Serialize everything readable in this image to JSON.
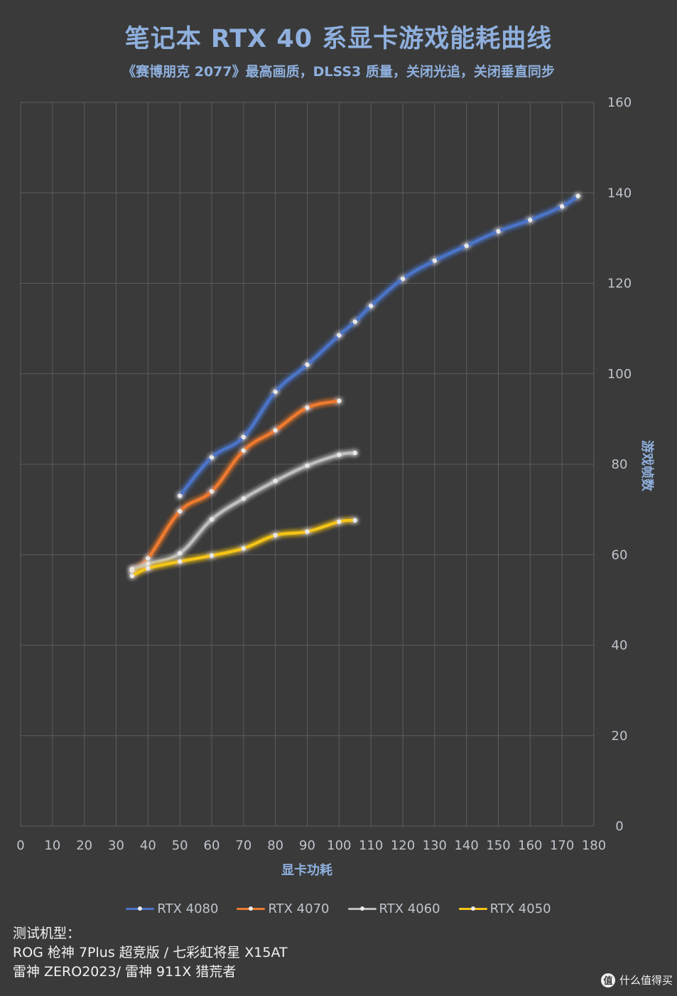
{
  "chart_data": {
    "type": "line",
    "title": "笔记本 RTX 40 系显卡游戏能耗曲线",
    "subtitle": "《赛博朋克 2077》最高画质，DLSS3 质量，关闭光追，关闭垂直同步",
    "xlabel": "显卡功耗",
    "ylabel": "游戏帧数",
    "xlim": [
      0,
      180
    ],
    "ylim": [
      0,
      160
    ],
    "x_ticks": [
      0,
      10,
      20,
      30,
      40,
      50,
      60,
      70,
      80,
      90,
      100,
      110,
      120,
      130,
      140,
      150,
      160,
      170,
      180
    ],
    "y_ticks": [
      0,
      20,
      40,
      60,
      80,
      100,
      120,
      140,
      160
    ],
    "grid": true,
    "legend_position": "bottom",
    "y_axis_side": "right",
    "series": [
      {
        "name": "RTX 4080",
        "color": "#4b74c9",
        "points": [
          [
            50,
            73
          ],
          [
            60,
            81.5
          ],
          [
            70,
            86
          ],
          [
            80,
            96
          ],
          [
            90,
            102
          ],
          [
            100,
            108.5
          ],
          [
            105,
            111.5
          ],
          [
            110,
            115
          ],
          [
            120,
            121
          ],
          [
            130,
            125
          ],
          [
            140,
            128.3
          ],
          [
            150,
            131.5
          ],
          [
            160,
            134
          ],
          [
            170,
            137
          ],
          [
            175,
            139.3
          ]
        ]
      },
      {
        "name": "RTX 4070",
        "color": "#ef7a2f",
        "points": [
          [
            35,
            56.5
          ],
          [
            40,
            59.2
          ],
          [
            50,
            69.6
          ],
          [
            60,
            74
          ],
          [
            70,
            83
          ],
          [
            80,
            87.5
          ],
          [
            90,
            92.5
          ],
          [
            100,
            94
          ]
        ]
      },
      {
        "name": "RTX 4060",
        "color": "#bfbfbf",
        "points": [
          [
            35,
            56.8
          ],
          [
            40,
            58
          ],
          [
            50,
            60.3
          ],
          [
            60,
            67.8
          ],
          [
            70,
            72.4
          ],
          [
            80,
            76.3
          ],
          [
            90,
            79.7
          ],
          [
            100,
            82.1
          ],
          [
            105,
            82.5
          ]
        ]
      },
      {
        "name": "RTX 4050",
        "color": "#f5c518",
        "points": [
          [
            35,
            55.3
          ],
          [
            40,
            57
          ],
          [
            50,
            58.5
          ],
          [
            60,
            59.8
          ],
          [
            70,
            61.4
          ],
          [
            80,
            64.3
          ],
          [
            90,
            65.1
          ],
          [
            100,
            67.3
          ],
          [
            105,
            67.6
          ]
        ]
      }
    ]
  },
  "colors": {
    "background": "#3a3a3a",
    "grid": "#5c5c5c",
    "title": "#8fb0de",
    "tick": "#bfc4cc"
  },
  "footnote": {
    "line1": "测试机型：",
    "line2": "ROG 枪神 7Plus 超竞版 / 七彩虹将星 X15AT",
    "line3": "雷神 ZERO2023/ 雷神 911X 猎荒者"
  },
  "watermark": {
    "icon_text": "值",
    "text": "什么值得买",
    "icon": "zhihu-circle-icon"
  }
}
